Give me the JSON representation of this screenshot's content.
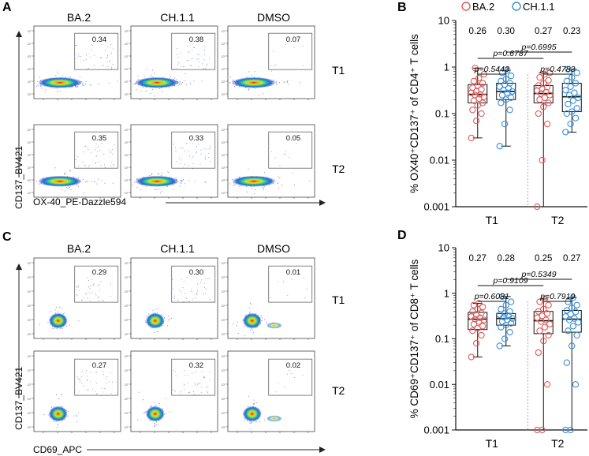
{
  "figure": {
    "panels": {
      "A": {
        "letter": "A",
        "columns": [
          "BA.2",
          "CH.1.1",
          "DMSO"
        ],
        "rows": [
          "T1",
          "T2"
        ],
        "gate_values": [
          [
            "0.34",
            "0.38",
            "0.07"
          ],
          [
            "0.35",
            "0.33",
            "0.05"
          ]
        ],
        "y_axis_label": "CD137_BV421",
        "x_axis_label": "OX-40_PE-Dazzle594"
      },
      "C": {
        "letter": "C",
        "columns": [
          "BA.2",
          "CH.1.1",
          "DMSO"
        ],
        "rows": [
          "T1",
          "T2"
        ],
        "gate_values": [
          [
            "0.29",
            "0.30",
            "0.01"
          ],
          [
            "0.27",
            "0.32",
            "0.02"
          ]
        ],
        "y_axis_label": "CD137_BV421",
        "x_axis_label": "CD69_APC"
      },
      "B": {
        "letter": "B"
      },
      "D": {
        "letter": "D"
      }
    }
  },
  "chart_data": [
    {
      "panel": "B",
      "type": "box-dot",
      "ylabel": "% OX40⁺CD137⁺ of CD4⁺ T cells",
      "yscale": "log",
      "ylim": [
        0.001,
        10
      ],
      "yticks": [
        "0.001",
        "0.01",
        "0.1",
        "1",
        "10"
      ],
      "categories": [
        "T1",
        "T2"
      ],
      "legend": [
        {
          "name": "BA.2",
          "color": "#e05a5a"
        },
        {
          "name": "CH.1.1",
          "color": "#3a8fd6"
        }
      ],
      "medians_labels": [
        "0.26",
        "0.30",
        "0.27",
        "0.23"
      ],
      "pvalues": [
        "p=0.6787",
        "p=0.6995",
        "p=0.5443",
        "p=0.4783"
      ],
      "series": [
        {
          "group": "T1",
          "name": "BA.2",
          "color": "#e05a5a",
          "box": {
            "min": 0.03,
            "q1": 0.17,
            "median": 0.26,
            "q3": 0.42,
            "max": 0.95
          },
          "points": [
            0.03,
            0.07,
            0.1,
            0.12,
            0.15,
            0.17,
            0.19,
            0.21,
            0.23,
            0.25,
            0.26,
            0.28,
            0.3,
            0.33,
            0.36,
            0.4,
            0.45,
            0.5,
            0.58,
            0.7,
            0.95
          ]
        },
        {
          "group": "T1",
          "name": "CH.1.1",
          "color": "#3a8fd6",
          "box": {
            "min": 0.02,
            "q1": 0.2,
            "median": 0.3,
            "q3": 0.45,
            "max": 0.85
          },
          "points": [
            0.02,
            0.06,
            0.12,
            0.17,
            0.2,
            0.22,
            0.25,
            0.28,
            0.3,
            0.32,
            0.35,
            0.38,
            0.42,
            0.45,
            0.5,
            0.55,
            0.65,
            0.75,
            0.85
          ]
        },
        {
          "group": "T2",
          "name": "BA.2",
          "color": "#e05a5a",
          "box": {
            "min": 0.001,
            "q1": 0.17,
            "median": 0.27,
            "q3": 0.4,
            "max": 0.75
          },
          "points": [
            0.001,
            0.01,
            0.06,
            0.1,
            0.14,
            0.17,
            0.2,
            0.22,
            0.25,
            0.27,
            0.29,
            0.31,
            0.34,
            0.37,
            0.4,
            0.45,
            0.52,
            0.6,
            0.7,
            0.75
          ]
        },
        {
          "group": "T2",
          "name": "CH.1.1",
          "color": "#3a8fd6",
          "box": {
            "min": 0.04,
            "q1": 0.11,
            "median": 0.23,
            "q3": 0.45,
            "max": 0.9
          },
          "points": [
            0.04,
            0.06,
            0.08,
            0.1,
            0.11,
            0.13,
            0.16,
            0.19,
            0.22,
            0.25,
            0.28,
            0.32,
            0.38,
            0.45,
            0.5,
            0.6,
            0.75,
            0.9
          ]
        }
      ]
    },
    {
      "panel": "D",
      "type": "box-dot",
      "ylabel": "% CD69⁺CD137⁺ of CD8⁺ T cells",
      "yscale": "log",
      "ylim": [
        0.001,
        10
      ],
      "yticks": [
        "0.001",
        "0.01",
        "0.1",
        "1",
        "10"
      ],
      "categories": [
        "T1",
        "T2"
      ],
      "medians_labels": [
        "0.27",
        "0.28",
        "0.25",
        "0.27"
      ],
      "pvalues": [
        "p=0.9109",
        "p=0.5349",
        "p=0.6081",
        "p=0.7919"
      ],
      "series": [
        {
          "group": "T1",
          "name": "BA.2",
          "color": "#e05a5a",
          "box": {
            "min": 0.04,
            "q1": 0.16,
            "median": 0.27,
            "q3": 0.38,
            "max": 0.6
          },
          "points": [
            0.04,
            0.08,
            0.12,
            0.15,
            0.17,
            0.19,
            0.21,
            0.24,
            0.26,
            0.27,
            0.29,
            0.31,
            0.34,
            0.37,
            0.4,
            0.45,
            0.5,
            0.55,
            0.6
          ]
        },
        {
          "group": "T1",
          "name": "CH.1.1",
          "color": "#3a8fd6",
          "box": {
            "min": 0.07,
            "q1": 0.2,
            "median": 0.28,
            "q3": 0.36,
            "max": 0.85
          },
          "points": [
            0.07,
            0.1,
            0.14,
            0.18,
            0.2,
            0.22,
            0.24,
            0.26,
            0.28,
            0.3,
            0.32,
            0.34,
            0.36,
            0.4,
            0.45,
            0.55,
            0.65,
            0.85
          ]
        },
        {
          "group": "T2",
          "name": "BA.2",
          "color": "#e05a5a",
          "box": {
            "min": 0.001,
            "q1": 0.13,
            "median": 0.25,
            "q3": 0.4,
            "max": 0.75
          },
          "points": [
            0.001,
            0.001,
            0.01,
            0.05,
            0.09,
            0.12,
            0.15,
            0.18,
            0.21,
            0.24,
            0.26,
            0.29,
            0.32,
            0.36,
            0.4,
            0.45,
            0.55,
            0.65,
            0.75
          ]
        },
        {
          "group": "T2",
          "name": "CH.1.1",
          "color": "#3a8fd6",
          "box": {
            "min": 0.001,
            "q1": 0.14,
            "median": 0.27,
            "q3": 0.42,
            "max": 0.8
          },
          "points": [
            0.001,
            0.001,
            0.01,
            0.03,
            0.07,
            0.12,
            0.15,
            0.19,
            0.23,
            0.26,
            0.28,
            0.31,
            0.35,
            0.39,
            0.42,
            0.48,
            0.55,
            0.65,
            0.8
          ]
        }
      ]
    }
  ]
}
